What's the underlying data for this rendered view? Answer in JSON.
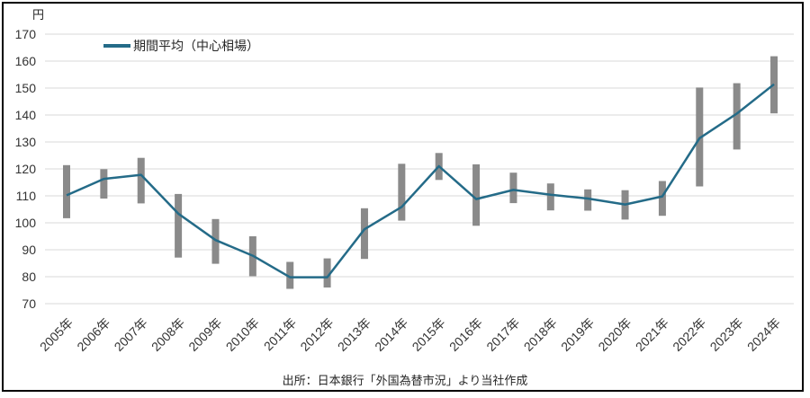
{
  "chart_data": {
    "type": "line",
    "title": "",
    "xlabel": "",
    "ylabel": "円",
    "ylim": [
      70,
      170
    ],
    "yticks": [
      170,
      160,
      150,
      140,
      130,
      120,
      110,
      100,
      90,
      80,
      70
    ],
    "grid": true,
    "legend_position": "top-left-inside",
    "categories": [
      "2005年",
      "2006年",
      "2007年",
      "2008年",
      "2009年",
      "2010年",
      "2011年",
      "2012年",
      "2013年",
      "2014年",
      "2015年",
      "2016年",
      "2017年",
      "2018年",
      "2019年",
      "2020年",
      "2021年",
      "2022年",
      "2023年",
      "2024年"
    ],
    "series": [
      {
        "name": "期間平均（中心相場）",
        "type": "line",
        "values": [
          110.2,
          116.3,
          117.8,
          103.4,
          93.6,
          87.8,
          79.8,
          79.8,
          97.6,
          105.9,
          121.0,
          108.8,
          112.2,
          110.4,
          109.0,
          106.8,
          109.8,
          131.4,
          140.5,
          151.4
        ]
      }
    ],
    "range_bars": {
      "high": [
        121.4,
        119.9,
        124.1,
        110.7,
        101.4,
        95.0,
        85.5,
        86.8,
        105.4,
        121.9,
        125.9,
        121.7,
        118.6,
        114.6,
        112.4,
        112.1,
        115.5,
        150.2,
        151.8,
        161.8
      ],
      "low": [
        101.7,
        109.0,
        107.2,
        87.1,
        84.8,
        80.2,
        75.5,
        76.0,
        86.6,
        100.8,
        115.9,
        98.9,
        107.3,
        104.6,
        104.5,
        101.2,
        102.6,
        113.5,
        127.2,
        140.6
      ]
    },
    "colors": {
      "line": "#246b88",
      "bar": "#8a8a8a",
      "grid": "#d9d9d9",
      "text": "#333333",
      "border": "#000000"
    },
    "source_note": "出所：日本銀行「外国為替市況」より当社作成"
  }
}
